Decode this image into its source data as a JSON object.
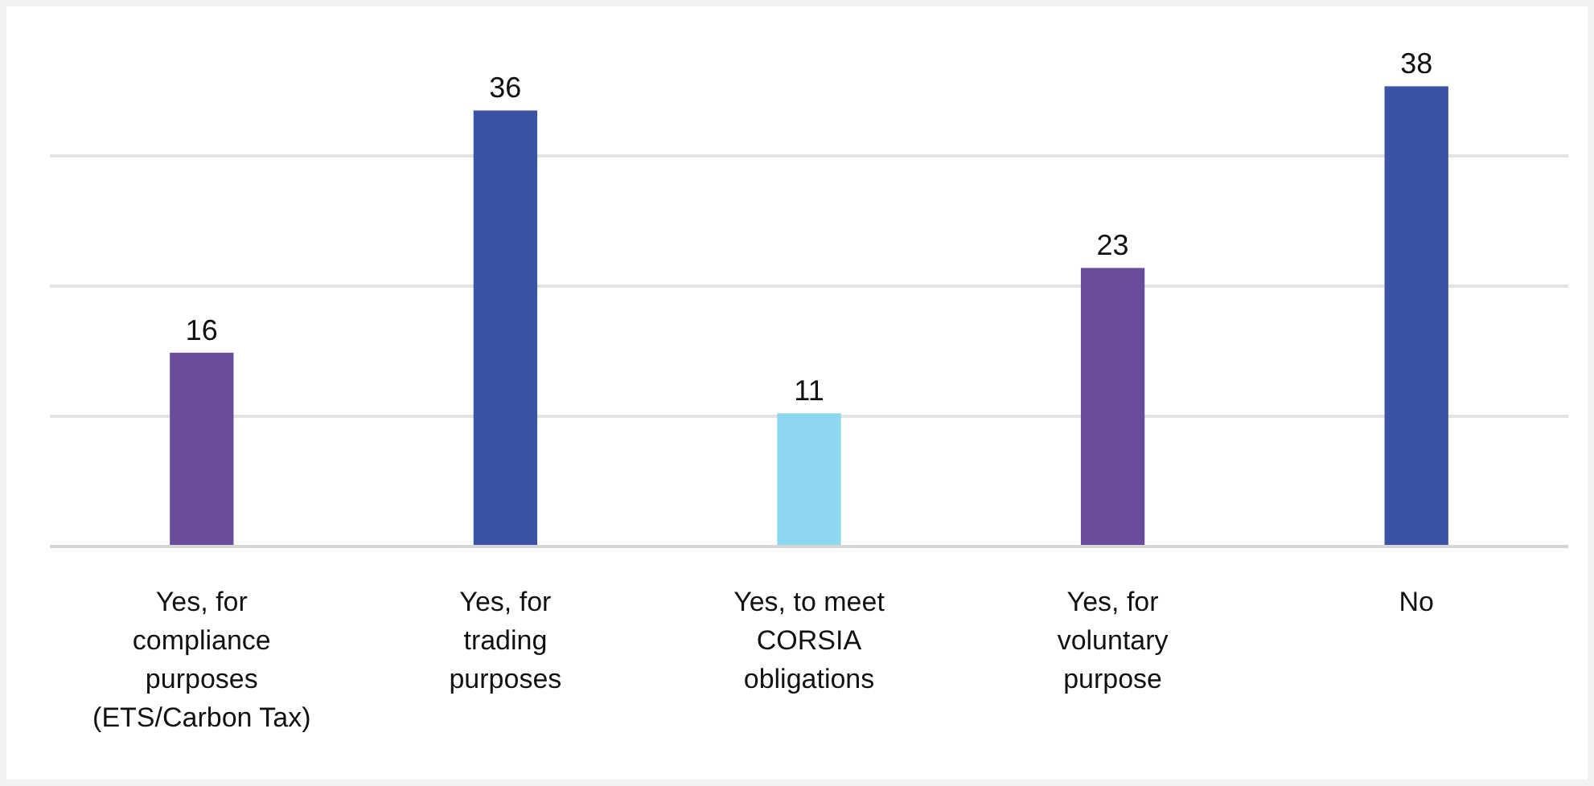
{
  "chart_data": {
    "type": "bar",
    "categories": [
      "Yes, for compliance purposes (ETS/Carbon Tax)",
      "Yes, for trading purposes",
      "Yes, to meet CORSIA obligations",
      "Yes, for voluntary purpose",
      "No"
    ],
    "values": [
      16,
      36,
      11,
      23,
      38
    ],
    "colors": [
      "#6a4c9c",
      "#3a53a4",
      "#8dd8f0",
      "#6a4c9c",
      "#3a53a4"
    ],
    "yticks": [
      {
        "value": 0,
        "label": null
      },
      {
        "value": 10.75,
        "label": null
      },
      {
        "value": 21.5,
        "label": null
      },
      {
        "value": 32.25,
        "label": null
      }
    ],
    "grid": "y",
    "tick_labels": "x",
    "data_labels": true
  }
}
